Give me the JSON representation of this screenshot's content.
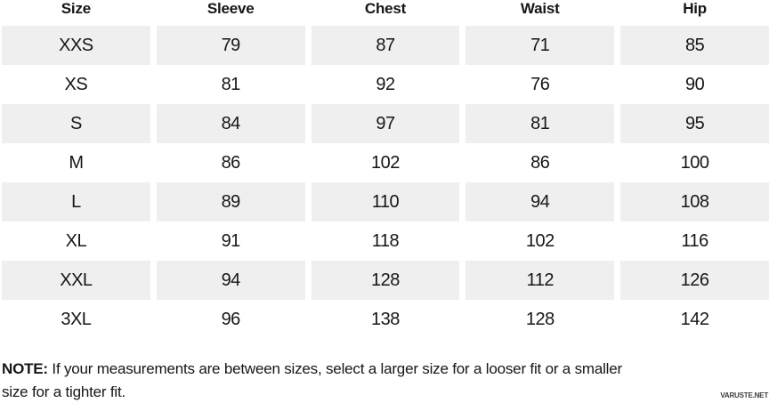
{
  "chart_data": {
    "type": "table",
    "columns": [
      "Size",
      "Sleeve",
      "Chest",
      "Waist",
      "Hip"
    ],
    "rows": [
      [
        "XXS",
        "79",
        "87",
        "71",
        "85"
      ],
      [
        "XS",
        "81",
        "92",
        "76",
        "90"
      ],
      [
        "S",
        "84",
        "97",
        "81",
        "95"
      ],
      [
        "M",
        "86",
        "102",
        "86",
        "100"
      ],
      [
        "L",
        "89",
        "110",
        "94",
        "108"
      ],
      [
        "XL",
        "91",
        "118",
        "102",
        "116"
      ],
      [
        "XXL",
        "94",
        "128",
        "112",
        "126"
      ],
      [
        "3XL",
        "96",
        "138",
        "128",
        "142"
      ]
    ]
  },
  "note": {
    "label": "NOTE:",
    "line1": "If your measurements are between sizes, select a larger size for a looser fit or a smaller",
    "line2": "size for a tighter fit."
  },
  "watermark": "VARUSTE.NET",
  "colors": {
    "stripe": "#efefef",
    "text": "#161616",
    "watermark": "#3d3d3d"
  }
}
